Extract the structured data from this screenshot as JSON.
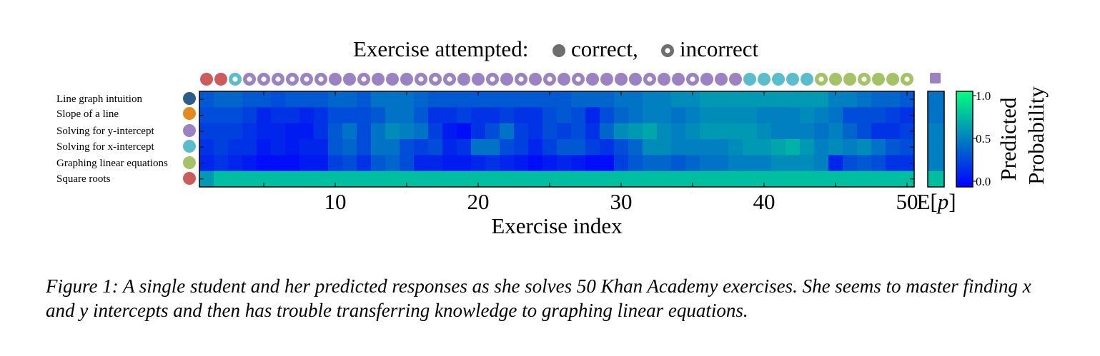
{
  "chart_data": {
    "type": "heatmap",
    "legend_title": "Exercise attempted:",
    "legend_correct_label": "correct,",
    "legend_incorrect_label": "incorrect",
    "xlabel": "Exercise index",
    "x_ticks": [
      10,
      20,
      30,
      40,
      50
    ],
    "x_range": [
      1,
      50
    ],
    "expected_label": "E[p]",
    "colorbar_label_line1": "Predicted",
    "colorbar_label_line2": "Probability",
    "colorbar_ticks": [
      "1.0",
      "0.5",
      "0.0"
    ],
    "value_range": [
      0,
      1
    ],
    "colormap": [
      "#0000ff",
      "#00ff80"
    ],
    "concept_colors": {
      "line_graph": "#2a5d8a",
      "slope": "#e58a1e",
      "y_intercept": "#9b82c2",
      "x_intercept": "#5bbdcc",
      "graphing": "#a4c266",
      "square_roots": "#cc5b5b"
    },
    "rows": [
      {
        "label": "Line graph intuition",
        "concept": "line_graph"
      },
      {
        "label": "Slope of a line",
        "concept": "slope"
      },
      {
        "label": "Solving for y-intercept",
        "concept": "y_intercept"
      },
      {
        "label": "Solving for x-intercept",
        "concept": "x_intercept"
      },
      {
        "label": "Graphing linear equations",
        "concept": "graphing"
      },
      {
        "label": "Square roots",
        "concept": "square_roots"
      }
    ],
    "attempts": [
      {
        "concept": "square_roots",
        "correct": true
      },
      {
        "concept": "square_roots",
        "correct": true
      },
      {
        "concept": "x_intercept",
        "correct": false
      },
      {
        "concept": "y_intercept",
        "correct": false
      },
      {
        "concept": "y_intercept",
        "correct": false
      },
      {
        "concept": "y_intercept",
        "correct": false
      },
      {
        "concept": "y_intercept",
        "correct": false
      },
      {
        "concept": "y_intercept",
        "correct": false
      },
      {
        "concept": "y_intercept",
        "correct": false
      },
      {
        "concept": "y_intercept",
        "correct": true
      },
      {
        "concept": "y_intercept",
        "correct": true
      },
      {
        "concept": "y_intercept",
        "correct": false
      },
      {
        "concept": "y_intercept",
        "correct": true
      },
      {
        "concept": "y_intercept",
        "correct": true
      },
      {
        "concept": "y_intercept",
        "correct": true
      },
      {
        "concept": "y_intercept",
        "correct": false
      },
      {
        "concept": "y_intercept",
        "correct": false
      },
      {
        "concept": "y_intercept",
        "correct": false
      },
      {
        "concept": "y_intercept",
        "correct": true
      },
      {
        "concept": "y_intercept",
        "correct": true
      },
      {
        "concept": "y_intercept",
        "correct": false
      },
      {
        "concept": "y_intercept",
        "correct": true
      },
      {
        "concept": "y_intercept",
        "correct": false
      },
      {
        "concept": "y_intercept",
        "correct": true
      },
      {
        "concept": "y_intercept",
        "correct": false
      },
      {
        "concept": "y_intercept",
        "correct": true
      },
      {
        "concept": "y_intercept",
        "correct": false
      },
      {
        "concept": "y_intercept",
        "correct": true
      },
      {
        "concept": "y_intercept",
        "correct": true
      },
      {
        "concept": "y_intercept",
        "correct": true
      },
      {
        "concept": "y_intercept",
        "correct": true
      },
      {
        "concept": "y_intercept",
        "correct": false
      },
      {
        "concept": "y_intercept",
        "correct": true
      },
      {
        "concept": "y_intercept",
        "correct": true
      },
      {
        "concept": "y_intercept",
        "correct": false
      },
      {
        "concept": "y_intercept",
        "correct": true
      },
      {
        "concept": "y_intercept",
        "correct": true
      },
      {
        "concept": "y_intercept",
        "correct": true
      },
      {
        "concept": "x_intercept",
        "correct": true
      },
      {
        "concept": "x_intercept",
        "correct": true
      },
      {
        "concept": "x_intercept",
        "correct": true
      },
      {
        "concept": "x_intercept",
        "correct": true
      },
      {
        "concept": "x_intercept",
        "correct": true
      },
      {
        "concept": "graphing",
        "correct": false
      },
      {
        "concept": "graphing",
        "correct": true
      },
      {
        "concept": "graphing",
        "correct": true
      },
      {
        "concept": "graphing",
        "correct": false
      },
      {
        "concept": "graphing",
        "correct": true
      },
      {
        "concept": "graphing",
        "correct": true
      },
      {
        "concept": "graphing",
        "correct": false
      }
    ],
    "next_marker_concept": "y_intercept",
    "values": [
      [
        0.35,
        0.4,
        0.4,
        0.35,
        0.35,
        0.3,
        0.35,
        0.35,
        0.35,
        0.4,
        0.4,
        0.35,
        0.45,
        0.45,
        0.45,
        0.4,
        0.35,
        0.35,
        0.35,
        0.35,
        0.35,
        0.35,
        0.35,
        0.35,
        0.35,
        0.35,
        0.4,
        0.4,
        0.4,
        0.45,
        0.45,
        0.5,
        0.5,
        0.55,
        0.55,
        0.6,
        0.6,
        0.6,
        0.6,
        0.6,
        0.6,
        0.6,
        0.6,
        0.6,
        0.5,
        0.5,
        0.45,
        0.4,
        0.4,
        0.35
      ],
      [
        0.3,
        0.3,
        0.3,
        0.25,
        0.15,
        0.2,
        0.2,
        0.15,
        0.2,
        0.3,
        0.3,
        0.3,
        0.35,
        0.45,
        0.45,
        0.35,
        0.2,
        0.2,
        0.25,
        0.2,
        0.2,
        0.25,
        0.2,
        0.2,
        0.3,
        0.35,
        0.3,
        0.15,
        0.3,
        0.4,
        0.45,
        0.5,
        0.5,
        0.45,
        0.5,
        0.55,
        0.55,
        0.55,
        0.55,
        0.5,
        0.5,
        0.5,
        0.55,
        0.5,
        0.45,
        0.3,
        0.3,
        0.3,
        0.25,
        0.2
      ],
      [
        0.25,
        0.25,
        0.25,
        0.2,
        0.15,
        0.15,
        0.1,
        0.1,
        0.2,
        0.35,
        0.45,
        0.3,
        0.45,
        0.55,
        0.5,
        0.45,
        0.25,
        0.1,
        0.05,
        0.2,
        0.3,
        0.45,
        0.25,
        0.2,
        0.3,
        0.25,
        0.3,
        0.2,
        0.4,
        0.55,
        0.6,
        0.65,
        0.55,
        0.5,
        0.55,
        0.6,
        0.6,
        0.6,
        0.6,
        0.55,
        0.5,
        0.5,
        0.5,
        0.45,
        0.5,
        0.4,
        0.3,
        0.2,
        0.2,
        0.25
      ],
      [
        0.2,
        0.25,
        0.2,
        0.2,
        0.1,
        0.15,
        0.1,
        0.15,
        0.15,
        0.35,
        0.4,
        0.3,
        0.45,
        0.45,
        0.3,
        0.25,
        0.3,
        0.15,
        0.2,
        0.45,
        0.45,
        0.3,
        0.25,
        0.15,
        0.25,
        0.35,
        0.35,
        0.25,
        0.2,
        0.3,
        0.4,
        0.55,
        0.55,
        0.5,
        0.5,
        0.5,
        0.5,
        0.55,
        0.6,
        0.6,
        0.65,
        0.7,
        0.6,
        0.5,
        0.55,
        0.5,
        0.55,
        0.45,
        0.35,
        0.3
      ],
      [
        0.15,
        0.2,
        0.15,
        0.1,
        0.05,
        0.05,
        0.05,
        0.1,
        0.1,
        0.25,
        0.3,
        0.2,
        0.35,
        0.4,
        0.3,
        0.15,
        0.15,
        0.1,
        0.1,
        0.15,
        0.2,
        0.15,
        0.1,
        0.05,
        0.1,
        0.15,
        0.1,
        0.05,
        0.05,
        0.25,
        0.35,
        0.4,
        0.4,
        0.35,
        0.4,
        0.45,
        0.45,
        0.5,
        0.5,
        0.5,
        0.55,
        0.55,
        0.55,
        0.5,
        0.15,
        0.3,
        0.35,
        0.3,
        0.2,
        0.2
      ],
      [
        0.6,
        0.75,
        0.75,
        0.75,
        0.75,
        0.75,
        0.75,
        0.75,
        0.75,
        0.75,
        0.75,
        0.75,
        0.75,
        0.75,
        0.75,
        0.75,
        0.75,
        0.75,
        0.75,
        0.75,
        0.75,
        0.75,
        0.75,
        0.75,
        0.75,
        0.75,
        0.75,
        0.75,
        0.75,
        0.75,
        0.75,
        0.75,
        0.75,
        0.75,
        0.75,
        0.75,
        0.75,
        0.75,
        0.75,
        0.75,
        0.75,
        0.75,
        0.75,
        0.75,
        0.75,
        0.75,
        0.75,
        0.75,
        0.75,
        0.75
      ]
    ],
    "expected_values": [
      0.45,
      0.45,
      0.5,
      0.5,
      0.5,
      0.75
    ]
  },
  "caption": "Figure 1: A single student and her predicted responses as she solves 50 Khan Academy exercises. She seems to master finding x and y intercepts and then has trouble transferring knowledge to graphing linear equations."
}
